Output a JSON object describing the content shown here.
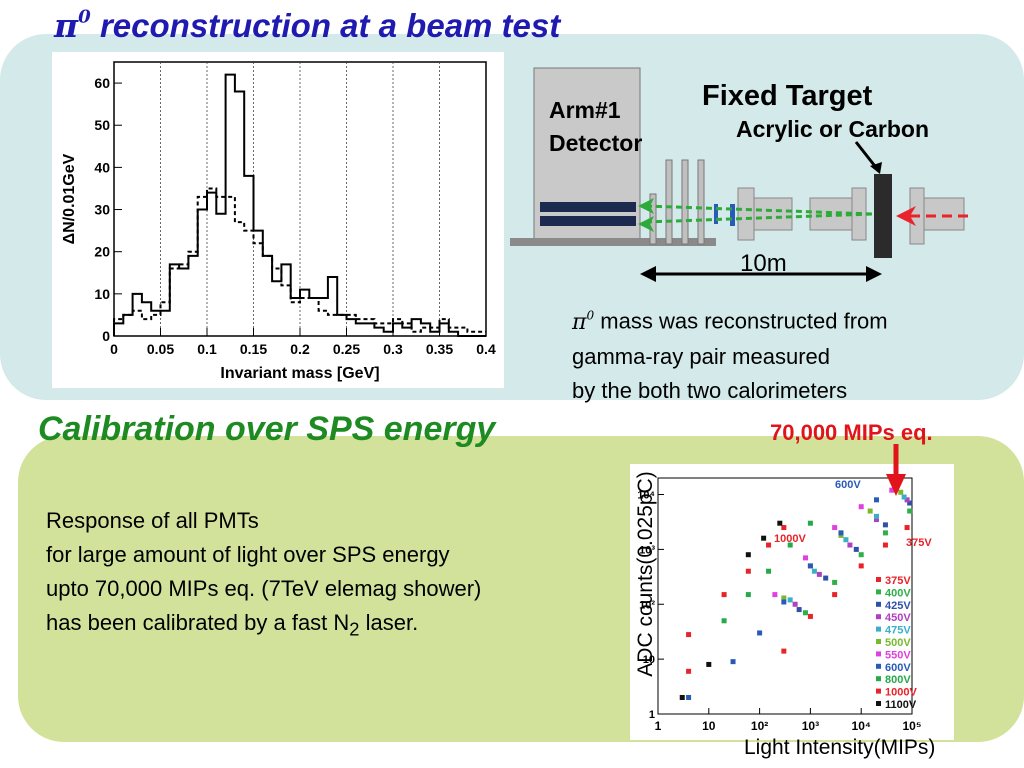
{
  "slide": {
    "title1_text": "reconstruction at a beam test",
    "title1_pi": "π",
    "title1_sup": "0",
    "title2": "Calibration over SPS energy"
  },
  "diagram": {
    "arm_line1": "Arm#1",
    "arm_line2": "Detector",
    "fixed_target": "Fixed Target",
    "target_material": "Acrylic or Carbon",
    "distance": "10m"
  },
  "caption": {
    "pi": "π",
    "sup": "0",
    "line1_rest": " mass was reconstructed from",
    "line2": "gamma-ray pair measured",
    "line3": "by the both two calorimeters"
  },
  "response": {
    "line1": "Response of all PMTs",
    "line2": "for large amount of light over SPS energy",
    "line3": "upto 70,000 MIPs eq. (7TeV elemag shower)",
    "line4_pre": "has been calibrated  by a fast N",
    "line4_sub": "2",
    "line4_post": " laser."
  },
  "annotation": {
    "mip": "70,000 MIPs eq."
  },
  "chart_data": [
    {
      "type": "line",
      "xlabel": "Invariant mass [GeV]",
      "ylabel": "ΔN/0.01GeV",
      "xlim": [
        0,
        0.4
      ],
      "ylim": [
        0,
        65
      ],
      "xticks": [
        "0",
        "0.05",
        "0.1",
        "0.15",
        "0.2",
        "0.25",
        "0.3",
        "0.35",
        "0.4"
      ],
      "yticks": [
        "0",
        "10",
        "20",
        "30",
        "40",
        "50",
        "60"
      ],
      "grid": "vertical",
      "bin_width": 0.01,
      "series": [
        {
          "style": "solid",
          "values": [
            3,
            5,
            10,
            8,
            6,
            6,
            17,
            16,
            19,
            30,
            34,
            29,
            62,
            58,
            38,
            25,
            19,
            13,
            17,
            9,
            11,
            9,
            9,
            14,
            5,
            4,
            3,
            3,
            2,
            1,
            3,
            2,
            4,
            3,
            1,
            3,
            1,
            0,
            0,
            0
          ]
        },
        {
          "style": "dashed",
          "values": [
            4,
            5,
            6,
            4,
            5,
            8,
            16,
            17,
            20,
            33,
            35,
            33,
            33,
            27,
            25,
            22,
            19,
            16,
            12,
            8,
            9,
            9,
            6,
            5,
            5,
            5,
            4,
            4,
            3,
            3,
            4,
            3,
            1,
            2,
            2,
            4,
            2,
            2,
            1,
            1
          ]
        }
      ]
    },
    {
      "type": "scatter",
      "xlabel": "Light Intensity(MIPs)",
      "ylabel": "ADC counts(0.025pC)",
      "xscale": "log",
      "yscale": "log",
      "xlim": [
        1,
        100000
      ],
      "ylim": [
        1,
        20000
      ],
      "xticks": [
        "1",
        "10",
        "10²",
        "10³",
        "10⁴",
        "10⁵"
      ],
      "yticks": [
        "1",
        "10",
        "10²",
        "10³",
        "10⁴"
      ],
      "annotations": [
        "600V",
        "1000V",
        "375V"
      ],
      "legend_position": "right",
      "series": [
        {
          "name": "375V",
          "color": "#e8232a",
          "points": [
            [
              4,
              6
            ],
            [
              300,
              14
            ],
            [
              1000,
              60
            ],
            [
              3000,
              150
            ],
            [
              10000,
              500
            ],
            [
              30000,
              1200
            ],
            [
              80000,
              2500
            ]
          ]
        },
        {
          "name": "400V",
          "color": "#2fae4a",
          "points": [
            [
              800,
              70
            ],
            [
              3000,
              250
            ],
            [
              10000,
              800
            ],
            [
              30000,
              2000
            ],
            [
              90000,
              5000
            ]
          ]
        },
        {
          "name": "425V",
          "color": "#3050a8",
          "points": [
            [
              600,
              80
            ],
            [
              2000,
              300
            ],
            [
              8000,
              1000
            ],
            [
              30000,
              2800
            ],
            [
              90000,
              7000
            ]
          ]
        },
        {
          "name": "450V",
          "color": "#b040c0",
          "points": [
            [
              500,
              100
            ],
            [
              1500,
              350
            ],
            [
              6000,
              1200
            ],
            [
              20000,
              3500
            ],
            [
              80000,
              8000
            ]
          ]
        },
        {
          "name": "475V",
          "color": "#3ab0c8",
          "points": [
            [
              400,
              120
            ],
            [
              1200,
              400
            ],
            [
              5000,
              1500
            ],
            [
              20000,
              4000
            ],
            [
              70000,
              9000
            ]
          ]
        },
        {
          "name": "500V",
          "color": "#7ab830",
          "points": [
            [
              300,
              130
            ],
            [
              1000,
              500
            ],
            [
              4000,
              1800
            ],
            [
              15000,
              5000
            ],
            [
              60000,
              11000
            ]
          ]
        },
        {
          "name": "550V",
          "color": "#e040e0",
          "points": [
            [
              200,
              150
            ],
            [
              800,
              700
            ],
            [
              3000,
              2500
            ],
            [
              10000,
              6000
            ],
            [
              40000,
              12000
            ]
          ]
        },
        {
          "name": "600V",
          "color": "#2a5ab8",
          "points": [
            [
              4,
              2
            ],
            [
              30,
              9
            ],
            [
              100,
              30
            ],
            [
              300,
              110
            ],
            [
              1000,
              500
            ],
            [
              4000,
              2000
            ],
            [
              20000,
              8000
            ]
          ]
        },
        {
          "name": "800V",
          "color": "#27a84a",
          "points": [
            [
              20,
              50
            ],
            [
              60,
              150
            ],
            [
              150,
              400
            ],
            [
              400,
              1200
            ],
            [
              1000,
              3000
            ]
          ]
        },
        {
          "name": "1000V",
          "color": "#e8232a",
          "points": [
            [
              4,
              28
            ],
            [
              20,
              150
            ],
            [
              60,
              400
            ],
            [
              150,
              1200
            ],
            [
              300,
              2500
            ]
          ]
        },
        {
          "name": "1100V",
          "color": "#111111",
          "points": [
            [
              3,
              2
            ],
            [
              10,
              8
            ],
            [
              60,
              800
            ],
            [
              120,
              1600
            ],
            [
              250,
              3000
            ]
          ]
        }
      ]
    }
  ]
}
